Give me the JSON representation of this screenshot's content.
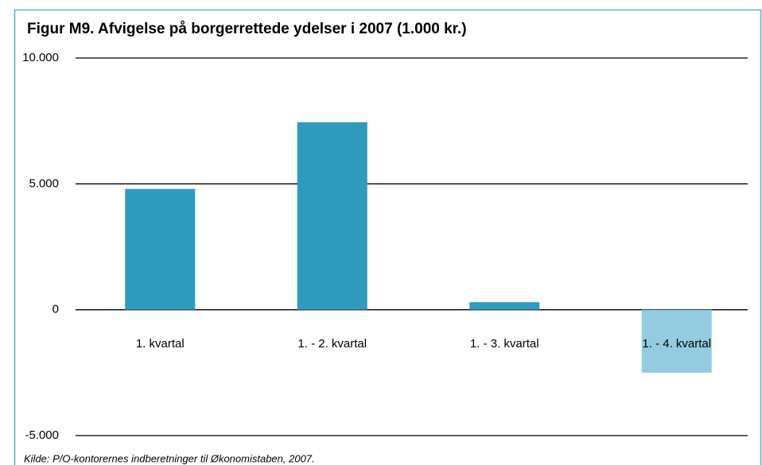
{
  "chart_data": {
    "type": "bar",
    "title": "Figur M9. Afvigelse på borgerrettede ydelser i 2007 (1.000 kr.)",
    "categories": [
      "1. kvartal",
      "1. - 2. kvartal",
      "1. - 3. kvartal",
      "1. - 4. kvartal"
    ],
    "values": [
      4800,
      7450,
      300,
      -2500
    ],
    "colors": [
      "#2e9bbf",
      "#2e9bbf",
      "#2e9bbf",
      "#93cce0"
    ],
    "ylim": [
      -5000,
      10000
    ],
    "yticks": [
      {
        "value": -5000,
        "label": "-5.000"
      },
      0,
      {
        "value": 5000,
        "label": "5.000"
      },
      {
        "value": 10000,
        "label": "10.000"
      }
    ],
    "grid": true,
    "source": "Kilde: P/O-kontorernes indberetninger til Økonomistaben, 2007."
  }
}
